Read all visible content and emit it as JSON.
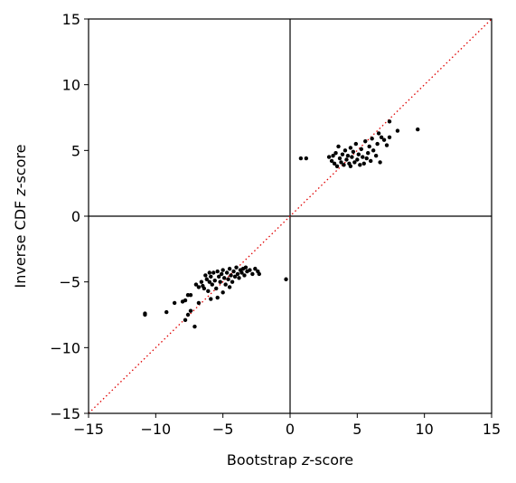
{
  "chart_data": {
    "type": "scatter",
    "title": "",
    "xlabel_prefix": "Bootstrap ",
    "xlabel_italic": "z",
    "xlabel_suffix": "-score",
    "ylabel_prefix": "Inverse CDF ",
    "ylabel_italic": "z",
    "ylabel_suffix": "-score",
    "xlim": [
      -15,
      15
    ],
    "ylim": [
      -15,
      15
    ],
    "xticks": [
      -15,
      -10,
      -5,
      0,
      5,
      10,
      15
    ],
    "yticks": [
      -15,
      -10,
      -5,
      0,
      5,
      10,
      15
    ],
    "xtick_labels": [
      "−15",
      "−10",
      "−5",
      "0",
      "5",
      "10",
      "15"
    ],
    "ytick_labels": [
      "−15",
      "−10",
      "−5",
      "0",
      "5",
      "10",
      "15"
    ],
    "reference_lines": {
      "zero_lines": true,
      "identity_line": true,
      "identity_color": "#e00000"
    },
    "marker_color": "#000000",
    "series": [
      {
        "name": "points",
        "points": [
          [
            -10.8,
            -7.4
          ],
          [
            -10.8,
            -7.5
          ],
          [
            -9.2,
            -7.3
          ],
          [
            -8.6,
            -6.6
          ],
          [
            -8.0,
            -6.5
          ],
          [
            -7.8,
            -6.4
          ],
          [
            -7.8,
            -7.9
          ],
          [
            -7.6,
            -6.0
          ],
          [
            -7.4,
            -6.0
          ],
          [
            -7.6,
            -7.5
          ],
          [
            -7.4,
            -7.2
          ],
          [
            -7.1,
            -8.4
          ],
          [
            -7.0,
            -5.2
          ],
          [
            -6.8,
            -5.4
          ],
          [
            -6.8,
            -6.6
          ],
          [
            -6.6,
            -5.0
          ],
          [
            -6.5,
            -5.3
          ],
          [
            -6.4,
            -5.5
          ],
          [
            -6.3,
            -4.5
          ],
          [
            -6.2,
            -4.8
          ],
          [
            -6.1,
            -5.7
          ],
          [
            -6.0,
            -4.3
          ],
          [
            -6.0,
            -5.0
          ],
          [
            -5.9,
            -6.3
          ],
          [
            -5.9,
            -4.6
          ],
          [
            -5.8,
            -5.2
          ],
          [
            -5.7,
            -4.3
          ],
          [
            -5.6,
            -4.9
          ],
          [
            -5.5,
            -5.5
          ],
          [
            -5.4,
            -4.2
          ],
          [
            -5.4,
            -6.2
          ],
          [
            -5.3,
            -4.6
          ],
          [
            -5.2,
            -5.0
          ],
          [
            -5.1,
            -4.4
          ],
          [
            -5.0,
            -5.8
          ],
          [
            -5.0,
            -4.1
          ],
          [
            -4.9,
            -4.7
          ],
          [
            -4.8,
            -5.2
          ],
          [
            -4.7,
            -4.3
          ],
          [
            -4.6,
            -4.8
          ],
          [
            -4.5,
            -5.4
          ],
          [
            -4.5,
            -4.0
          ],
          [
            -4.4,
            -4.5
          ],
          [
            -4.3,
            -5.0
          ],
          [
            -4.2,
            -4.2
          ],
          [
            -4.1,
            -4.6
          ],
          [
            -4.0,
            -3.9
          ],
          [
            -3.9,
            -4.4
          ],
          [
            -3.8,
            -4.7
          ],
          [
            -3.7,
            -4.1
          ],
          [
            -3.6,
            -4.3
          ],
          [
            -3.5,
            -4.0
          ],
          [
            -3.4,
            -4.5
          ],
          [
            -3.3,
            -3.9
          ],
          [
            -3.2,
            -4.2
          ],
          [
            -3.0,
            -4.1
          ],
          [
            -2.8,
            -4.4
          ],
          [
            -2.6,
            -4.0
          ],
          [
            -2.4,
            -4.2
          ],
          [
            -2.3,
            -4.4
          ],
          [
            -0.3,
            -4.8
          ],
          [
            0.8,
            4.4
          ],
          [
            1.2,
            4.4
          ],
          [
            2.9,
            4.5
          ],
          [
            3.1,
            4.2
          ],
          [
            3.2,
            4.6
          ],
          [
            3.3,
            4.0
          ],
          [
            3.4,
            4.8
          ],
          [
            3.5,
            3.8
          ],
          [
            3.6,
            5.3
          ],
          [
            3.7,
            4.4
          ],
          [
            3.8,
            4.1
          ],
          [
            3.9,
            4.7
          ],
          [
            4.0,
            3.9
          ],
          [
            4.1,
            5.0
          ],
          [
            4.2,
            4.3
          ],
          [
            4.3,
            4.6
          ],
          [
            4.4,
            4.0
          ],
          [
            4.5,
            5.2
          ],
          [
            4.5,
            3.8
          ],
          [
            4.6,
            4.5
          ],
          [
            4.7,
            4.9
          ],
          [
            4.8,
            4.1
          ],
          [
            4.9,
            5.5
          ],
          [
            5.0,
            4.3
          ],
          [
            5.1,
            4.7
          ],
          [
            5.2,
            3.9
          ],
          [
            5.3,
            5.1
          ],
          [
            5.4,
            4.5
          ],
          [
            5.5,
            4.0
          ],
          [
            5.6,
            5.7
          ],
          [
            5.7,
            4.4
          ],
          [
            5.8,
            4.8
          ],
          [
            5.9,
            5.3
          ],
          [
            6.0,
            4.2
          ],
          [
            6.1,
            5.9
          ],
          [
            6.2,
            5.0
          ],
          [
            6.4,
            4.6
          ],
          [
            6.5,
            5.5
          ],
          [
            6.6,
            6.3
          ],
          [
            6.7,
            4.1
          ],
          [
            6.8,
            6.0
          ],
          [
            7.0,
            5.8
          ],
          [
            7.2,
            5.4
          ],
          [
            7.4,
            6.0
          ],
          [
            7.4,
            7.2
          ],
          [
            8.0,
            6.5
          ],
          [
            9.5,
            6.6
          ]
        ]
      }
    ]
  }
}
